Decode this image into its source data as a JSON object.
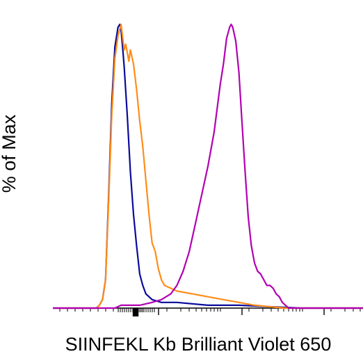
{
  "chart_data": {
    "type": "line",
    "title": "",
    "xlabel": "SIINFEKL Kb Brilliant Violet 650",
    "ylabel": "% of Max",
    "x_scale": "biexponential",
    "ylim": [
      0,
      100
    ],
    "legend": "none",
    "grid": false,
    "series": [
      {
        "color": "#0a0a9a",
        "values": [
          [
            0,
            0
          ],
          [
            14,
            0
          ],
          [
            15,
            1
          ],
          [
            16,
            3
          ],
          [
            17,
            10
          ],
          [
            18,
            40
          ],
          [
            19,
            72
          ],
          [
            20,
            92
          ],
          [
            21,
            99
          ],
          [
            21.6,
            100
          ],
          [
            22,
            98
          ],
          [
            22.5,
            92
          ],
          [
            23,
            85
          ],
          [
            24,
            68
          ],
          [
            25,
            48
          ],
          [
            26,
            33
          ],
          [
            27,
            22
          ],
          [
            28,
            12
          ],
          [
            29,
            8
          ],
          [
            30,
            5
          ],
          [
            32,
            3
          ],
          [
            35,
            2
          ],
          [
            40,
            2
          ],
          [
            50,
            1
          ],
          [
            60,
            1
          ],
          [
            70,
            0.5
          ],
          [
            80,
            0
          ],
          [
            100,
            0
          ]
        ]
      },
      {
        "color": "#ff8c19",
        "values": [
          [
            0,
            0
          ],
          [
            14,
            0
          ],
          [
            15,
            1
          ],
          [
            16,
            3
          ],
          [
            17,
            10
          ],
          [
            18,
            38
          ],
          [
            19,
            68
          ],
          [
            20,
            88
          ],
          [
            21,
            96
          ],
          [
            22,
            100
          ],
          [
            23,
            91
          ],
          [
            23.5,
            93
          ],
          [
            24.5,
            87
          ],
          [
            25,
            91
          ],
          [
            26,
            86
          ],
          [
            27,
            77
          ],
          [
            28,
            66
          ],
          [
            29,
            57
          ],
          [
            30,
            45
          ],
          [
            31,
            33
          ],
          [
            32,
            23
          ],
          [
            33,
            20
          ],
          [
            34,
            14
          ],
          [
            35,
            10
          ],
          [
            36,
            8
          ],
          [
            38,
            7
          ],
          [
            40,
            6
          ],
          [
            45,
            5
          ],
          [
            50,
            4
          ],
          [
            55,
            3
          ],
          [
            60,
            2
          ],
          [
            65,
            1
          ],
          [
            70,
            0.5
          ],
          [
            75,
            0
          ],
          [
            100,
            0
          ]
        ]
      },
      {
        "color": "#b200b2",
        "values": [
          [
            0,
            0
          ],
          [
            20,
            0
          ],
          [
            22,
            1
          ],
          [
            25,
            1
          ],
          [
            28,
            1
          ],
          [
            32,
            2
          ],
          [
            35,
            3
          ],
          [
            38,
            5
          ],
          [
            40,
            8
          ],
          [
            42,
            13
          ],
          [
            44,
            20
          ],
          [
            46,
            30
          ],
          [
            48,
            40
          ],
          [
            50,
            50
          ],
          [
            52,
            62
          ],
          [
            54,
            79
          ],
          [
            55,
            86
          ],
          [
            56,
            95
          ],
          [
            57,
            99
          ],
          [
            57.5,
            100
          ],
          [
            58,
            99
          ],
          [
            59,
            94
          ],
          [
            60,
            83
          ],
          [
            61,
            65
          ],
          [
            62,
            48
          ],
          [
            63,
            32
          ],
          [
            64,
            22
          ],
          [
            65,
            16
          ],
          [
            66,
            13
          ],
          [
            67,
            12
          ],
          [
            68,
            10
          ],
          [
            69,
            8
          ],
          [
            70,
            8
          ],
          [
            71,
            7
          ],
          [
            72,
            5
          ],
          [
            73,
            4
          ],
          [
            74,
            2
          ],
          [
            75,
            1
          ],
          [
            76,
            0
          ],
          [
            100,
            0
          ]
        ]
      }
    ]
  }
}
